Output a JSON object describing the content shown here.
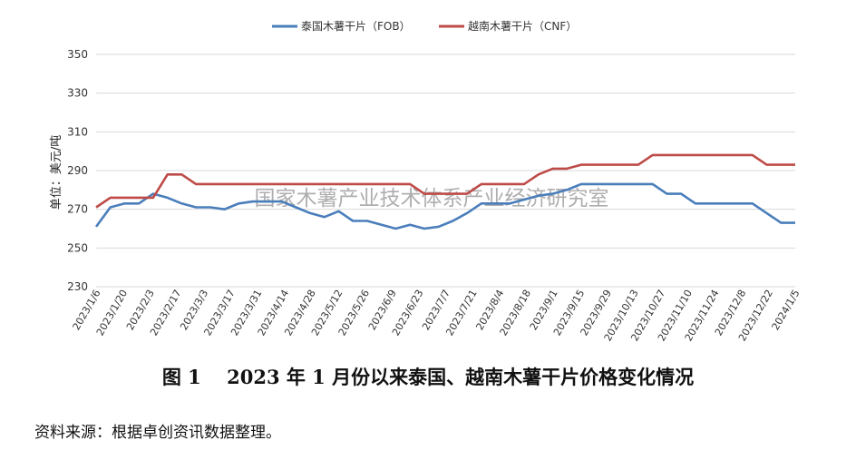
{
  "chart_data": {
    "type": "line",
    "ylabel": "单位：美元/吨",
    "ylim": [
      230,
      350
    ],
    "yticks": [
      230,
      250,
      270,
      290,
      310,
      330,
      350
    ],
    "grid": "horizontal",
    "legend_position": "top-center",
    "x_tick_labels": [
      "2023/1/6",
      "2023/1/20",
      "2023/2/3",
      "2023/2/17",
      "2023/3/3",
      "2023/3/17",
      "2023/3/31",
      "2023/4/14",
      "2023/4/28",
      "2023/5/12",
      "2023/5/26",
      "2023/6/9",
      "2023/6/23",
      "2023/7/7",
      "2023/7/21",
      "2023/8/4",
      "2023/8/18",
      "2023/9/1",
      "2023/9/15",
      "2023/9/29",
      "2023/10/13",
      "2023/10/27",
      "2023/11/10",
      "2023/11/24",
      "2023/12/8",
      "2023/12/22",
      "2024/1/5"
    ],
    "series": [
      {
        "name": "泰国木薯干片（FOB）",
        "color": "#4A7EBB",
        "values": [
          261,
          271,
          273,
          273,
          278,
          276,
          273,
          271,
          271,
          270,
          273,
          274,
          274,
          274,
          271,
          268,
          266,
          269,
          264,
          264,
          262,
          260,
          262,
          260,
          261,
          264,
          268,
          273,
          273,
          273,
          275,
          277,
          278,
          280,
          283,
          283,
          283,
          283,
          283,
          283,
          278,
          278,
          273,
          273,
          273,
          273,
          273,
          268,
          263,
          263
        ]
      },
      {
        "name": "越南木薯干片（CNF）",
        "color": "#BE4B48",
        "values": [
          271,
          276,
          276,
          276,
          276,
          288,
          288,
          283,
          283,
          283,
          283,
          283,
          283,
          283,
          283,
          283,
          283,
          283,
          283,
          283,
          283,
          283,
          283,
          278,
          278,
          278,
          278,
          283,
          283,
          283,
          283,
          288,
          291,
          291,
          293,
          293,
          293,
          293,
          293,
          298,
          298,
          298,
          298,
          298,
          298,
          298,
          298,
          293,
          293,
          293
        ]
      }
    ]
  },
  "watermark": "国家木薯产业技术体系产业经济研究室",
  "caption": "图 1　 2023 年 1 月份以来泰国、越南木薯干片价格变化情况",
  "source": "资料来源：根据卓创资讯数据整理。"
}
